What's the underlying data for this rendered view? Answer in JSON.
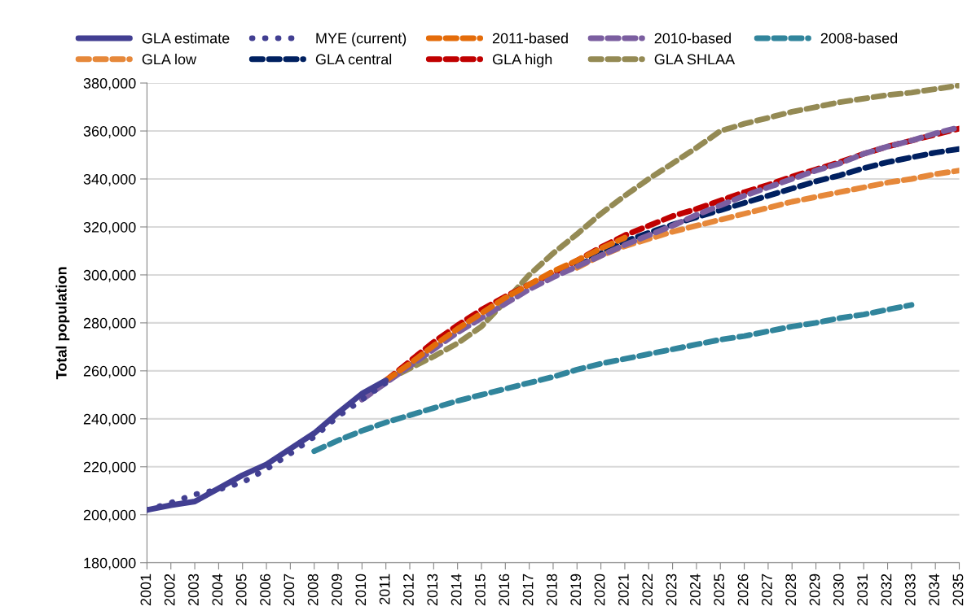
{
  "chart_data": {
    "type": "line",
    "ylabel": "Total population",
    "categories": [
      "2001",
      "2002",
      "2003",
      "2004",
      "2005",
      "2006",
      "2007",
      "2008",
      "2009",
      "2010",
      "2011",
      "2012",
      "2013",
      "2014",
      "2015",
      "2016",
      "2017",
      "2018",
      "2019",
      "2020",
      "2021",
      "2022",
      "2023",
      "2024",
      "2025",
      "2026",
      "2027",
      "2028",
      "2029",
      "2030",
      "2031",
      "2032",
      "2033",
      "2034",
      "2035"
    ],
    "ylim": [
      180000,
      380000
    ],
    "yticks": [
      {
        "value": 180000,
        "label": "180,000"
      },
      {
        "value": 200000,
        "label": "200,000"
      },
      {
        "value": 220000,
        "label": "220,000"
      },
      {
        "value": 240000,
        "label": "240,000"
      },
      {
        "value": 260000,
        "label": "260,000"
      },
      {
        "value": 280000,
        "label": "280,000"
      },
      {
        "value": 300000,
        "label": "300,000"
      },
      {
        "value": 320000,
        "label": "320,000"
      },
      {
        "value": 340000,
        "label": "340,000"
      },
      {
        "value": 360000,
        "label": "360,000"
      },
      {
        "value": 380000,
        "label": "380,000"
      }
    ],
    "grid": "y",
    "legend": "top",
    "marker": "none",
    "series": [
      {
        "name": "GLA estimate",
        "color": "#423f92",
        "line_style": "solid",
        "values": [
          202000,
          204000,
          205500,
          211000,
          216500,
          221000,
          227500,
          234000,
          242500,
          250500,
          256000,
          null,
          null,
          null,
          null,
          null,
          null,
          null,
          null,
          null,
          null,
          null,
          null,
          null,
          null,
          null,
          null,
          null,
          null,
          null,
          null,
          null,
          null,
          null,
          null
        ]
      },
      {
        "name": "MYE (current)",
        "color": "#423f92",
        "line_style": "dotted",
        "values": [
          202000,
          205000,
          208500,
          210500,
          213500,
          219000,
          225500,
          232500,
          241000,
          248000,
          255000,
          null,
          null,
          null,
          null,
          null,
          null,
          null,
          null,
          null,
          null,
          null,
          null,
          null,
          null,
          null,
          null,
          null,
          null,
          null,
          null,
          null,
          null,
          null,
          null
        ]
      },
      {
        "name": "2011-based",
        "color": "#e46c0a",
        "line_style": "dashed",
        "values": [
          null,
          null,
          null,
          null,
          null,
          null,
          null,
          null,
          null,
          null,
          256000,
          263000,
          270500,
          277500,
          284000,
          290500,
          296000,
          301500,
          306000,
          311000,
          315500,
          null,
          null,
          null,
          null,
          null,
          null,
          null,
          null,
          null,
          null,
          null,
          null,
          null,
          null
        ]
      },
      {
        "name": "2010-based",
        "color": "#7b5ea0",
        "line_style": "dashed",
        "values": [
          null,
          null,
          null,
          null,
          null,
          null,
          null,
          null,
          null,
          248000,
          255000,
          262000,
          269000,
          276000,
          282000,
          288000,
          294000,
          299000,
          303500,
          308000,
          312500,
          316500,
          320500,
          325000,
          329000,
          333000,
          336500,
          340000,
          343500,
          346500,
          350500,
          353500,
          356000,
          359000,
          361500
        ]
      },
      {
        "name": "2008-based",
        "color": "#31859c",
        "line_style": "dashed",
        "values": [
          null,
          null,
          null,
          null,
          null,
          null,
          null,
          226500,
          231000,
          235000,
          238500,
          241500,
          244500,
          247500,
          250000,
          252500,
          255000,
          257500,
          260500,
          263000,
          265000,
          267000,
          269000,
          271000,
          273000,
          274500,
          276500,
          278500,
          280000,
          282000,
          283500,
          285500,
          287500,
          null,
          null
        ]
      },
      {
        "name": "GLA low",
        "color": "#e6883a",
        "line_style": "dashed",
        "values": [
          null,
          null,
          null,
          null,
          null,
          null,
          null,
          null,
          null,
          null,
          null,
          null,
          null,
          null,
          null,
          null,
          null,
          null,
          303000,
          308000,
          312000,
          315000,
          318000,
          320500,
          323000,
          325500,
          328000,
          330500,
          332500,
          334500,
          336500,
          338500,
          340000,
          342000,
          343500
        ]
      },
      {
        "name": "GLA central",
        "color": "#002060",
        "line_style": "dashed",
        "values": [
          null,
          null,
          null,
          null,
          null,
          null,
          null,
          null,
          null,
          null,
          null,
          null,
          null,
          null,
          null,
          null,
          null,
          null,
          303500,
          309000,
          314000,
          317500,
          321000,
          324000,
          327000,
          330000,
          333000,
          336000,
          339000,
          341500,
          344500,
          347000,
          349000,
          351000,
          352500
        ]
      },
      {
        "name": "GLA high",
        "color": "#c00000",
        "line_style": "dashed",
        "values": [
          null,
          null,
          null,
          null,
          null,
          null,
          null,
          null,
          null,
          null,
          256000,
          264000,
          272000,
          279000,
          285500,
          291000,
          296000,
          300500,
          306000,
          311500,
          316500,
          320500,
          324500,
          327500,
          331000,
          334500,
          337500,
          341000,
          344000,
          347000,
          350500,
          353500,
          356000,
          358500,
          361000
        ]
      },
      {
        "name": "GLA SHLAA",
        "color": "#948a54",
        "line_style": "dashed",
        "values": [
          null,
          null,
          null,
          null,
          null,
          null,
          null,
          null,
          null,
          null,
          256000,
          261000,
          266000,
          271500,
          278500,
          289000,
          300000,
          309000,
          317000,
          325500,
          333000,
          340000,
          346500,
          353000,
          360000,
          363000,
          365500,
          368000,
          370000,
          372000,
          373500,
          375000,
          376000,
          377500,
          379000
        ]
      }
    ]
  }
}
